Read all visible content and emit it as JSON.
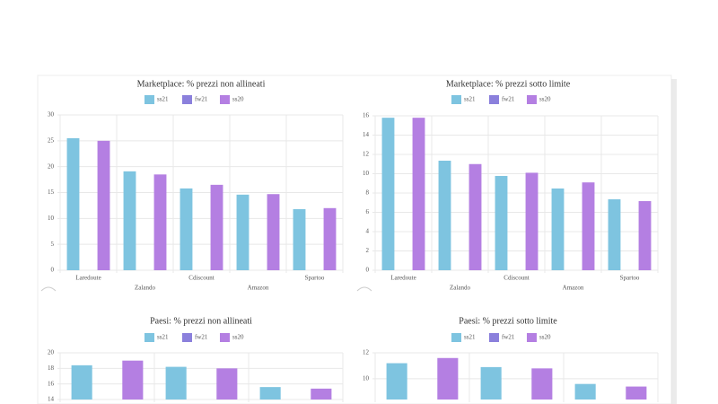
{
  "chart_data": [
    {
      "type": "bar",
      "title": "Marketplace: % prezzi non allineati",
      "categories": [
        "Laredoute",
        "Zalando",
        "Cdiscount",
        "Amazon",
        "Spartoo"
      ],
      "series": [
        {
          "name": "ss21",
          "color": "#7ec4e0",
          "values": [
            25.5,
            19.1,
            15.8,
            14.6,
            11.8
          ]
        },
        {
          "name": "fw21",
          "color": "#8b80dc",
          "values": [
            null,
            null,
            null,
            null,
            null
          ]
        },
        {
          "name": "ss20",
          "color": "#b47fe2",
          "values": [
            25.0,
            18.5,
            16.5,
            14.7,
            12.0
          ]
        }
      ],
      "ylim": [
        0,
        30
      ],
      "yticks": [
        0,
        5,
        10,
        15,
        20,
        25,
        30
      ],
      "grid": true
    },
    {
      "type": "bar",
      "title": "Marketplace: % prezzi sotto limite",
      "categories": [
        "Laredoute",
        "Zalando",
        "Cdiscount",
        "Amazon",
        "Spartoo"
      ],
      "series": [
        {
          "name": "ss21",
          "color": "#7ec4e0",
          "values": [
            15.8,
            11.35,
            9.77,
            8.47,
            7.35
          ]
        },
        {
          "name": "fw21",
          "color": "#8b80dc",
          "values": [
            null,
            null,
            null,
            null,
            null
          ]
        },
        {
          "name": "ss20",
          "color": "#b47fe2",
          "values": [
            15.8,
            11.0,
            10.1,
            9.1,
            7.16
          ]
        }
      ],
      "ylim": [
        0,
        16
      ],
      "yticks": [
        0,
        2,
        4,
        6,
        8,
        10,
        12,
        14,
        16
      ],
      "grid": true
    },
    {
      "type": "bar",
      "title": "Paesi: % prezzi non allineati",
      "categories": [
        null,
        null,
        null
      ],
      "series": [
        {
          "name": "ss21",
          "color": "#7ec4e0",
          "values": [
            18.4,
            18.2,
            15.6
          ]
        },
        {
          "name": "fw21",
          "color": "#8b80dc",
          "values": [
            null,
            null,
            null
          ]
        },
        {
          "name": "ss20",
          "color": "#b47fe2",
          "values": [
            19.0,
            18.0,
            15.4
          ]
        }
      ],
      "ylim": [
        14,
        20
      ],
      "yticks": [
        14,
        16,
        18,
        20
      ],
      "grid": true
    },
    {
      "type": "bar",
      "title": "Paesi: % prezzi sotto limite",
      "categories": [
        null,
        null,
        null
      ],
      "series": [
        {
          "name": "ss21",
          "color": "#7ec4e0",
          "values": [
            11.2,
            10.9,
            9.6
          ]
        },
        {
          "name": "fw21",
          "color": "#8b80dc",
          "values": [
            null,
            null,
            null
          ]
        },
        {
          "name": "ss20",
          "color": "#b47fe2",
          "values": [
            11.6,
            10.8,
            9.4
          ]
        }
      ],
      "ylim": [
        8.4,
        12
      ],
      "yticks": [
        10,
        12
      ],
      "grid": true
    }
  ]
}
